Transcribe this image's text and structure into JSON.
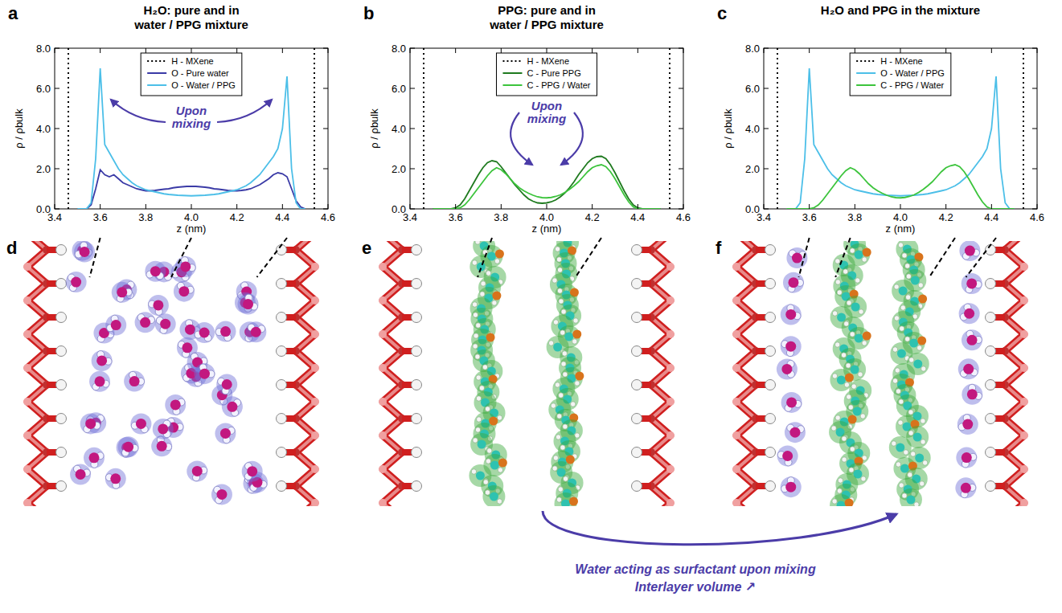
{
  "chart_data": [
    {
      "type": "line",
      "panel": "a",
      "title": "H₂O: pure and in water / PPG mixture",
      "x_label": "z (nm)",
      "y_label": "ρ / ρbulk",
      "xlim": [
        3.4,
        4.6
      ],
      "xticks": [
        3.4,
        3.6,
        3.8,
        {
          "value": 4,
          "label": "4.0"
        },
        4.2,
        4.4,
        4.6
      ],
      "ylim": [
        0,
        8
      ],
      "yticks": [
        {
          "value": 0,
          "label": "0.0"
        },
        {
          "value": 2,
          "label": "2.0"
        },
        {
          "value": 4,
          "label": "4.0"
        },
        {
          "value": 6,
          "label": "6.0"
        },
        {
          "value": 8,
          "label": "8.0"
        }
      ],
      "grid": false,
      "legend": "top",
      "annotations": [
        "Upon mixing"
      ],
      "x": [
        3.5,
        3.52,
        3.54,
        3.56,
        3.58,
        3.6,
        3.62,
        3.64,
        3.66,
        3.68,
        3.7,
        3.72,
        3.74,
        3.76,
        3.78,
        3.8,
        3.82,
        3.84,
        3.86,
        3.88,
        3.9,
        3.92,
        3.94,
        3.96,
        3.98,
        4,
        4.02,
        4.04,
        4.06,
        4.08,
        4.1,
        4.12,
        4.14,
        4.16,
        4.18,
        4.2,
        4.22,
        4.24,
        4.26,
        4.28,
        4.3,
        4.32,
        4.34,
        4.36,
        4.38,
        4.4,
        4.42,
        4.44,
        4.46,
        4.48,
        4.5
      ],
      "series": [
        {
          "name": "H - MXene",
          "type": "vline",
          "color": "#000000",
          "line_style": "dotted",
          "x": [
            3.46,
            4.54
          ]
        },
        {
          "name": "O - Pure water",
          "color": "#3a3aa6",
          "line_style": "solid",
          "values": [
            0,
            0,
            0,
            0.2,
            1.0,
            1.95,
            1.7,
            1.6,
            1.7,
            1.5,
            1.3,
            1.2,
            1.1,
            1.0,
            0.95,
            0.9,
            0.9,
            0.92,
            0.95,
            0.98,
            1.0,
            1.05,
            1.08,
            1.1,
            1.12,
            1.12,
            1.12,
            1.1,
            1.08,
            1.05,
            1.0,
            0.98,
            0.95,
            0.92,
            0.9,
            0.9,
            0.92,
            0.95,
            1.0,
            1.1,
            1.2,
            1.35,
            1.5,
            1.7,
            1.8,
            1.75,
            1.6,
            1.0,
            0.4,
            0.1,
            0
          ]
        },
        {
          "name": "O - Water / PPG",
          "color": "#4cbfe8",
          "line_style": "solid",
          "values": [
            0,
            0,
            0,
            0.3,
            2.5,
            7.0,
            3.2,
            2.8,
            2.4,
            2.0,
            1.7,
            1.5,
            1.3,
            1.15,
            1.05,
            0.95,
            0.9,
            0.85,
            0.8,
            0.75,
            0.72,
            0.7,
            0.68,
            0.67,
            0.66,
            0.65,
            0.66,
            0.67,
            0.68,
            0.7,
            0.72,
            0.75,
            0.8,
            0.85,
            0.9,
            0.95,
            1.05,
            1.15,
            1.3,
            1.5,
            1.7,
            2.0,
            2.3,
            2.6,
            3.0,
            4.0,
            6.6,
            2.0,
            0.3,
            0,
            0
          ]
        }
      ]
    },
    {
      "type": "line",
      "panel": "b",
      "title": "PPG: pure and in water / PPG mixture",
      "x_label": "z (nm)",
      "y_label": "ρ / ρbulk",
      "xlim": [
        3.4,
        4.6
      ],
      "xticks": [
        3.4,
        3.6,
        3.8,
        {
          "value": 4,
          "label": "4.0"
        },
        4.2,
        4.4,
        4.6
      ],
      "ylim": [
        0,
        8
      ],
      "yticks": [
        {
          "value": 0,
          "label": "0.0"
        },
        {
          "value": 2,
          "label": "2.0"
        },
        {
          "value": 4,
          "label": "4.0"
        },
        {
          "value": 6,
          "label": "6.0"
        },
        {
          "value": 8,
          "label": "8.0"
        }
      ],
      "grid": false,
      "legend": "top",
      "annotations": [
        "Upon mixing"
      ],
      "x": [
        3.5,
        3.52,
        3.54,
        3.56,
        3.58,
        3.6,
        3.62,
        3.64,
        3.66,
        3.68,
        3.7,
        3.72,
        3.74,
        3.76,
        3.78,
        3.8,
        3.82,
        3.84,
        3.86,
        3.88,
        3.9,
        3.92,
        3.94,
        3.96,
        3.98,
        4,
        4.02,
        4.04,
        4.06,
        4.08,
        4.1,
        4.12,
        4.14,
        4.16,
        4.18,
        4.2,
        4.22,
        4.24,
        4.26,
        4.28,
        4.3,
        4.32,
        4.34,
        4.36,
        4.38,
        4.4,
        4.42,
        4.44,
        4.46,
        4.48,
        4.5
      ],
      "series": [
        {
          "name": "H - MXene",
          "type": "vline",
          "color": "#000000",
          "line_style": "dotted",
          "x": [
            3.46,
            4.54
          ]
        },
        {
          "name": "C - Pure PPG",
          "color": "#1f7a1f",
          "line_style": "solid",
          "values": [
            0,
            0,
            0,
            0,
            0,
            0.05,
            0.2,
            0.5,
            0.9,
            1.3,
            1.7,
            2.05,
            2.3,
            2.4,
            2.35,
            2.1,
            1.8,
            1.5,
            1.2,
            0.95,
            0.7,
            0.5,
            0.38,
            0.3,
            0.28,
            0.3,
            0.35,
            0.45,
            0.6,
            0.8,
            1.05,
            1.35,
            1.7,
            2.0,
            2.3,
            2.5,
            2.6,
            2.62,
            2.5,
            2.2,
            1.8,
            1.35,
            0.9,
            0.5,
            0.2,
            0.05,
            0,
            0,
            0,
            0,
            0
          ]
        },
        {
          "name": "C - PPG / Water",
          "color": "#3cc43c",
          "line_style": "solid",
          "values": [
            0,
            0,
            0,
            0,
            0,
            0,
            0.05,
            0.2,
            0.45,
            0.75,
            1.05,
            1.35,
            1.65,
            1.9,
            2.05,
            1.95,
            1.75,
            1.5,
            1.25,
            1.05,
            0.9,
            0.78,
            0.68,
            0.6,
            0.56,
            0.55,
            0.57,
            0.62,
            0.7,
            0.82,
            0.97,
            1.15,
            1.35,
            1.6,
            1.85,
            2.05,
            2.15,
            2.2,
            2.1,
            1.85,
            1.5,
            1.1,
            0.7,
            0.35,
            0.1,
            0,
            0,
            0,
            0,
            0,
            0
          ]
        }
      ]
    },
    {
      "type": "line",
      "panel": "c",
      "title": "H₂O and PPG in the mixture",
      "x_label": "z (nm)",
      "y_label": "ρ / ρbulk",
      "xlim": [
        3.4,
        4.6
      ],
      "xticks": [
        3.4,
        3.6,
        3.8,
        {
          "value": 4,
          "label": "4.0"
        },
        4.2,
        4.4,
        4.6
      ],
      "ylim": [
        0,
        8
      ],
      "yticks": [
        {
          "value": 0,
          "label": "0.0"
        },
        {
          "value": 2,
          "label": "2.0"
        },
        {
          "value": 4,
          "label": "4.0"
        },
        {
          "value": 6,
          "label": "6.0"
        },
        {
          "value": 8,
          "label": "8.0"
        }
      ],
      "grid": false,
      "legend": "top",
      "x": [
        3.5,
        3.52,
        3.54,
        3.56,
        3.58,
        3.6,
        3.62,
        3.64,
        3.66,
        3.68,
        3.7,
        3.72,
        3.74,
        3.76,
        3.78,
        3.8,
        3.82,
        3.84,
        3.86,
        3.88,
        3.9,
        3.92,
        3.94,
        3.96,
        3.98,
        4,
        4.02,
        4.04,
        4.06,
        4.08,
        4.1,
        4.12,
        4.14,
        4.16,
        4.18,
        4.2,
        4.22,
        4.24,
        4.26,
        4.28,
        4.3,
        4.32,
        4.34,
        4.36,
        4.38,
        4.4,
        4.42,
        4.44,
        4.46,
        4.48,
        4.5
      ],
      "series": [
        {
          "name": "H - MXene",
          "type": "vline",
          "color": "#000000",
          "line_style": "dotted",
          "x": [
            3.46,
            4.54
          ]
        },
        {
          "name": "O - Water / PPG",
          "color": "#4cbfe8",
          "line_style": "solid",
          "values": [
            0,
            0,
            0,
            0.3,
            2.5,
            7.0,
            3.2,
            2.8,
            2.4,
            2.0,
            1.7,
            1.5,
            1.3,
            1.15,
            1.05,
            0.95,
            0.9,
            0.85,
            0.8,
            0.75,
            0.72,
            0.7,
            0.68,
            0.67,
            0.66,
            0.65,
            0.66,
            0.67,
            0.68,
            0.7,
            0.72,
            0.75,
            0.8,
            0.85,
            0.9,
            0.95,
            1.05,
            1.15,
            1.3,
            1.5,
            1.7,
            2.0,
            2.3,
            2.6,
            3.0,
            4.0,
            6.6,
            2.0,
            0.3,
            0,
            0
          ]
        },
        {
          "name": "C - PPG / Water",
          "color": "#3cc43c",
          "line_style": "solid",
          "values": [
            0,
            0,
            0,
            0,
            0,
            0,
            0.05,
            0.2,
            0.45,
            0.75,
            1.05,
            1.35,
            1.65,
            1.9,
            2.05,
            1.95,
            1.75,
            1.5,
            1.25,
            1.05,
            0.9,
            0.78,
            0.68,
            0.6,
            0.56,
            0.55,
            0.57,
            0.62,
            0.7,
            0.82,
            0.97,
            1.15,
            1.35,
            1.6,
            1.85,
            2.05,
            2.15,
            2.2,
            2.1,
            1.85,
            1.5,
            1.1,
            0.7,
            0.35,
            0.1,
            0,
            0,
            0,
            0,
            0,
            0
          ]
        }
      ]
    }
  ],
  "images": [
    {
      "panel": "d"
    },
    {
      "panel": "e"
    },
    {
      "panel": "f"
    }
  ],
  "caption": [
    "Water acting as surfactant upon mixing",
    "Interlayer volume ↗"
  ]
}
